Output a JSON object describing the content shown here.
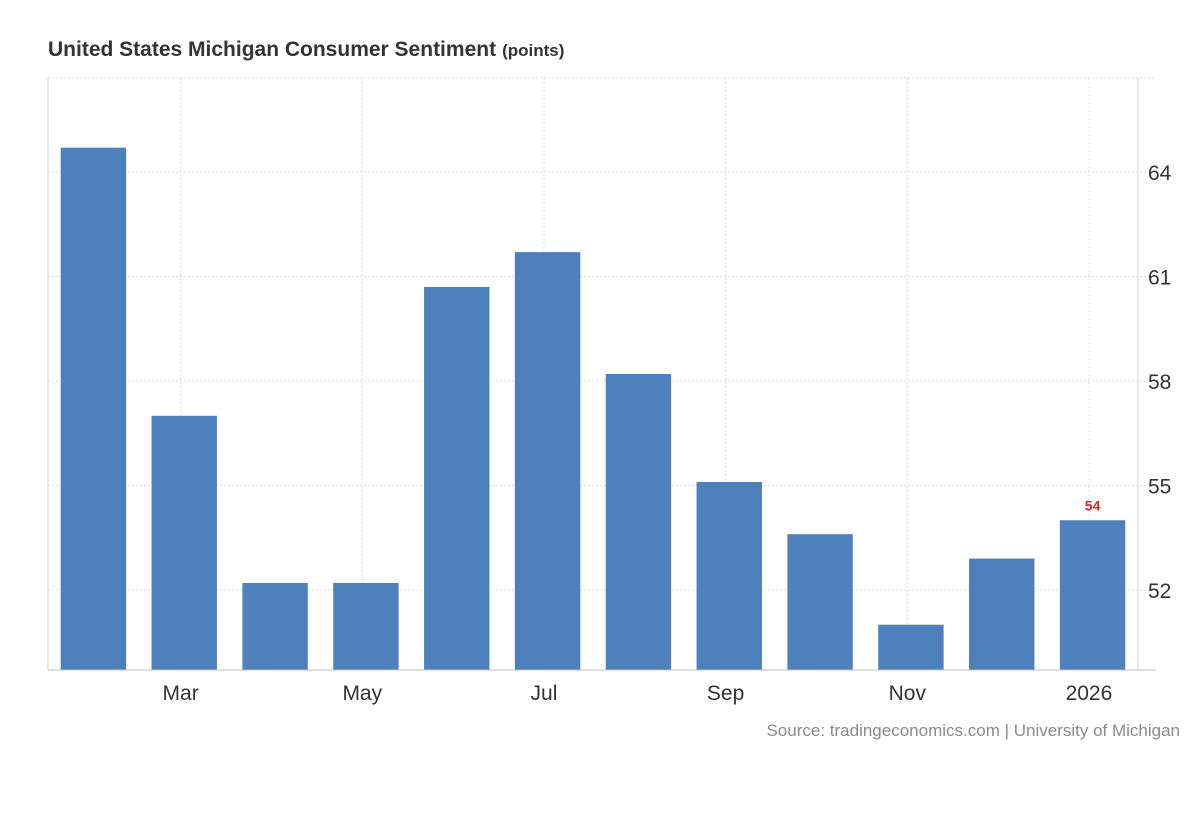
{
  "chart_data": {
    "type": "bar",
    "title": "United States Michigan Consumer Sentiment",
    "unit": "(points)",
    "source": "Source: tradingeconomics.com | University of Michigan",
    "bar_color": "#4e80bc",
    "highlight_label_color": "#e8202a",
    "grid": true,
    "ylim": [
      49.7,
      66.7
    ],
    "yticks": [
      52,
      55,
      58,
      61,
      64
    ],
    "x_tick_labels": [
      {
        "index": 1,
        "label": "Mar"
      },
      {
        "index": 3,
        "label": "May"
      },
      {
        "index": 5,
        "label": "Jul"
      },
      {
        "index": 7,
        "label": "Sep"
      },
      {
        "index": 9,
        "label": "Nov"
      },
      {
        "index": 11,
        "label": "2026"
      }
    ],
    "values": [
      64.7,
      57.0,
      52.2,
      52.2,
      60.7,
      61.7,
      58.2,
      55.1,
      53.6,
      51.0,
      52.9,
      54.0
    ],
    "last_value_label": "54"
  }
}
